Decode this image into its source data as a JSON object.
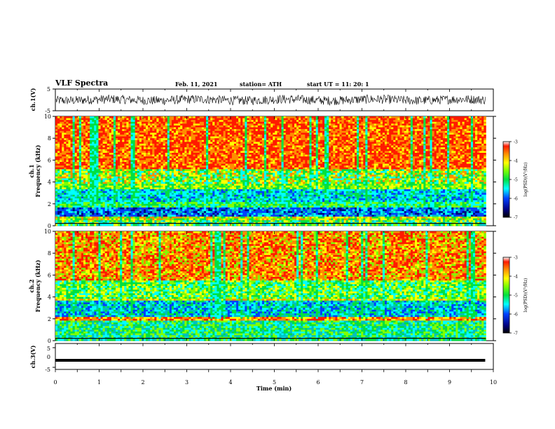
{
  "header": {
    "title": "VLF Spectra",
    "date": "Feb. 11, 2021",
    "station": "station= ATH",
    "start_ut": "start  UT =   11: 20: 1"
  },
  "chart_data": [
    {
      "type": "line",
      "id": "ch1-waveform",
      "ylabel": "ch.1(V)",
      "ylim": [
        -5,
        5
      ],
      "ytick_labels": [
        "5",
        "-5"
      ],
      "xlim": [
        0,
        10
      ],
      "series_color": "#000000",
      "description_values": "dense noise waveform roughly between -2.5 V and 2.5 V"
    },
    {
      "type": "heatmap",
      "id": "ch1-spectrogram",
      "ylabel": "ch.1\nFrequency (kHz)",
      "ylabel_lines": [
        "ch.1",
        "Frequency (kHz)"
      ],
      "ylim": [
        0,
        10
      ],
      "yticks": [
        0,
        2,
        4,
        6,
        8,
        10
      ],
      "xlim": [
        0,
        9.83
      ],
      "colorbar": {
        "min": -7,
        "max": -3,
        "ticks": [
          -7,
          -6,
          -5,
          -4,
          -3
        ],
        "label": "log(PSD)(V²/Hz)"
      }
    },
    {
      "type": "heatmap",
      "id": "ch2-spectrogram",
      "ylabel_lines": [
        "ch.2",
        "Frequency (kHz)"
      ],
      "ylim": [
        0,
        10
      ],
      "yticks": [
        0,
        2,
        4,
        6,
        8,
        10
      ],
      "xlim": [
        0,
        9.83
      ],
      "colorbar": {
        "min": -7,
        "max": -3,
        "ticks": [
          -7,
          -6,
          -5,
          -4,
          -3
        ],
        "label": "log(PSD)(V²/Hz)"
      }
    },
    {
      "type": "line",
      "id": "ch3-waveform",
      "ylabel": "ch.3(V)",
      "ylim": [
        -5,
        5
      ],
      "ytick_labels": [
        "5",
        "0",
        "-5"
      ],
      "xlim": [
        0,
        10
      ],
      "xticks": [
        0,
        1,
        2,
        3,
        4,
        5,
        6,
        7,
        8,
        9,
        10
      ],
      "xlabel": "Time (min)",
      "constant_value": -1.5
    }
  ],
  "colors": {
    "red": "#ff1a00",
    "orange": "#ff8c00",
    "yellow": "#ffff00",
    "lime": "#80ff00",
    "green": "#00e040",
    "cyan": "#00ffff",
    "teal": "#00c0c0",
    "blue": "#0040ff",
    "navy": "#000080",
    "black": "#000000"
  }
}
